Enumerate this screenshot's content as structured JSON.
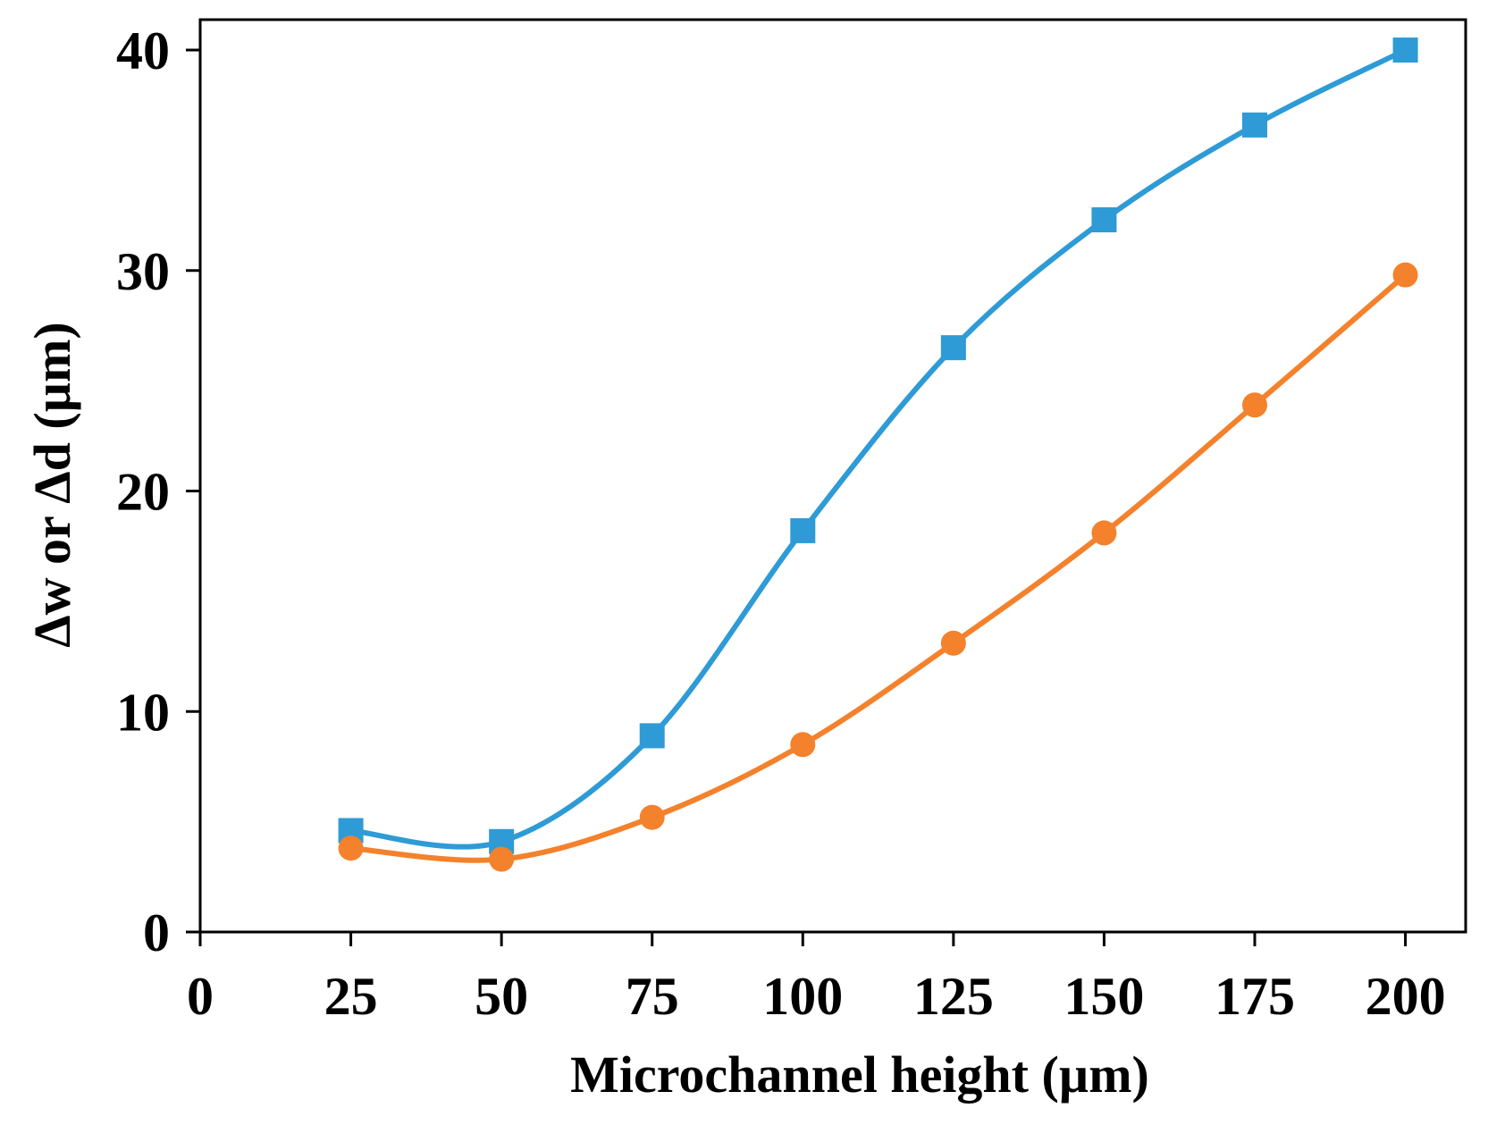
{
  "chart_data": {
    "type": "line",
    "title": "",
    "xlabel": "Microchannel  height (µm)",
    "ylabel": "Δw or Δd (µm)",
    "xlim": [
      0,
      210
    ],
    "ylim": [
      0,
      40
    ],
    "xticks": [
      0,
      25,
      50,
      75,
      100,
      125,
      150,
      175,
      200
    ],
    "yticks": [
      0,
      10,
      20,
      30,
      40
    ],
    "grid": false,
    "legend": "none",
    "x": [
      25,
      50,
      75,
      100,
      125,
      150,
      175,
      200
    ],
    "series": [
      {
        "name": "Δw",
        "marker": "square",
        "color": "#2E9BD6",
        "values": [
          4.6,
          4.1,
          8.9,
          18.2,
          26.5,
          32.3,
          36.6,
          40.0
        ]
      },
      {
        "name": "Δd",
        "marker": "circle",
        "color": "#F4812C",
        "values": [
          3.8,
          3.3,
          5.2,
          8.5,
          13.1,
          18.1,
          23.9,
          29.8
        ]
      }
    ]
  }
}
